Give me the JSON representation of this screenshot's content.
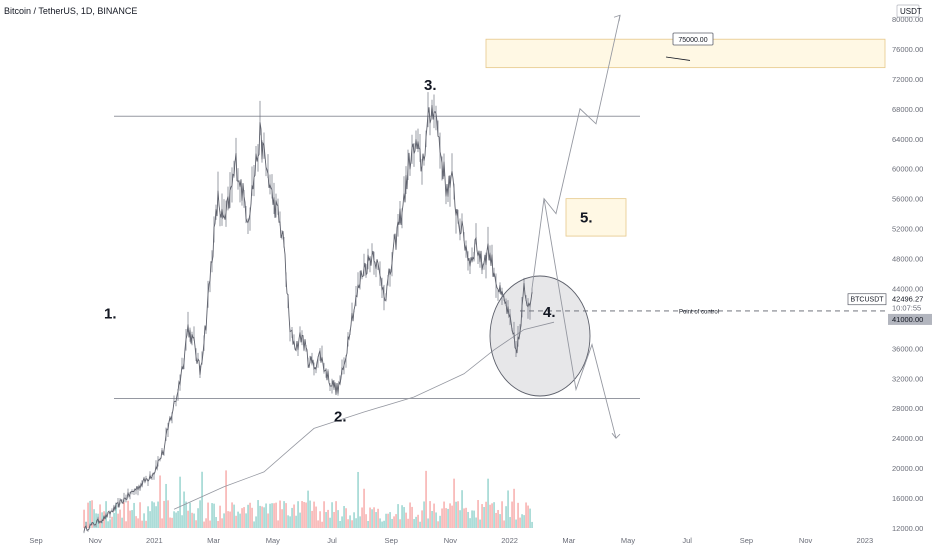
{
  "header": {
    "title": "Bitcoin / TetherUS, 1D, BINANCE"
  },
  "price_axis": {
    "currency": "USDT"
  },
  "chart_data": {
    "type": "candlestick",
    "symbol": "BTCUSDT",
    "interval": "1D",
    "exchange": "BINANCE",
    "ylim": [
      11000,
      80500
    ],
    "ticks_y": [
      12000,
      16000,
      20000,
      24000,
      28000,
      32000,
      36000,
      40000,
      44000,
      48000,
      52000,
      56000,
      60000,
      64000,
      68000,
      72000,
      76000,
      80000
    ],
    "ticks_x": [
      "Sep",
      "Nov",
      "2021",
      "Mar",
      "May",
      "Jul",
      "Sep",
      "Nov",
      "2022",
      "Mar",
      "May",
      "Jul",
      "Sep",
      "Nov",
      "2023"
    ],
    "price_path": [
      [
        0,
        11800
      ],
      [
        22,
        13500
      ],
      [
        40,
        15800
      ],
      [
        60,
        18200
      ],
      [
        70,
        19500
      ],
      [
        80,
        22500
      ],
      [
        86,
        26500
      ],
      [
        92,
        29300
      ],
      [
        98,
        33200
      ],
      [
        104,
        38800
      ],
      [
        110,
        36500
      ],
      [
        116,
        32800
      ],
      [
        122,
        39500
      ],
      [
        128,
        48500
      ],
      [
        134,
        55800
      ],
      [
        140,
        52500
      ],
      [
        146,
        56200
      ],
      [
        152,
        60800
      ],
      [
        158,
        57200
      ],
      [
        164,
        53500
      ],
      [
        170,
        58800
      ],
      [
        176,
        64300
      ],
      [
        182,
        60500
      ],
      [
        188,
        56200
      ],
      [
        194,
        53800
      ],
      [
        200,
        49800
      ],
      [
        206,
        38200
      ],
      [
        212,
        36200
      ],
      [
        218,
        37800
      ],
      [
        224,
        34600
      ],
      [
        230,
        33600
      ],
      [
        236,
        35200
      ],
      [
        242,
        32800
      ],
      [
        248,
        31200
      ],
      [
        254,
        30400
      ],
      [
        260,
        33500
      ],
      [
        266,
        39200
      ],
      [
        272,
        42400
      ],
      [
        278,
        46200
      ],
      [
        284,
        47500
      ],
      [
        290,
        49000
      ],
      [
        296,
        45400
      ],
      [
        302,
        43200
      ],
      [
        308,
        47500
      ],
      [
        314,
        52200
      ],
      [
        320,
        55800
      ],
      [
        326,
        61500
      ],
      [
        332,
        62800
      ],
      [
        338,
        60500
      ],
      [
        344,
        65800
      ],
      [
        350,
        68900
      ],
      [
        356,
        62800
      ],
      [
        362,
        57600
      ],
      [
        368,
        58200
      ],
      [
        374,
        53400
      ],
      [
        380,
        50600
      ],
      [
        386,
        47500
      ],
      [
        392,
        50200
      ],
      [
        398,
        47200
      ],
      [
        404,
        49200
      ],
      [
        410,
        46400
      ],
      [
        416,
        43200
      ],
      [
        422,
        41800
      ],
      [
        428,
        38200
      ],
      [
        432,
        35800
      ],
      [
        436,
        37800
      ],
      [
        440,
        43800
      ],
      [
        444,
        42000
      ],
      [
        448,
        43500
      ]
    ],
    "annotations": [
      {
        "label": "1.",
        "x_day": 20,
        "y": 40000
      },
      {
        "label": "2.",
        "x_day": 250,
        "y": 26200
      },
      {
        "label": "3.",
        "x_day": 340,
        "y": 70500
      },
      {
        "label": "4.",
        "x_day": 459,
        "y": 40200
      },
      {
        "label": "5.",
        "x_day": 496,
        "y": 52800
      }
    ],
    "resistance_level": 67000,
    "support_level": 29300,
    "point_of_control": {
      "label": "Point of control",
      "price": 41000
    },
    "target": {
      "label": "75000.00",
      "price": 75000
    },
    "target_zone": {
      "from": 73500,
      "to": 77300
    },
    "breakout_zone": {
      "from": 51000,
      "to": 56000
    },
    "projection_up": [
      [
        448,
        44000
      ],
      [
        460,
        56000
      ],
      [
        472,
        54000
      ],
      [
        496,
        68000
      ],
      [
        512,
        66000
      ],
      [
        536,
        80500
      ]
    ],
    "projection_down": [
      [
        460,
        56000
      ],
      [
        492,
        30500
      ],
      [
        508,
        36500
      ],
      [
        532,
        24000
      ]
    ],
    "last_price": {
      "symbol": "BTCUSDT",
      "price": "42496.27",
      "countdown": "10:07:55"
    },
    "poc_price_label": "41000.00"
  }
}
